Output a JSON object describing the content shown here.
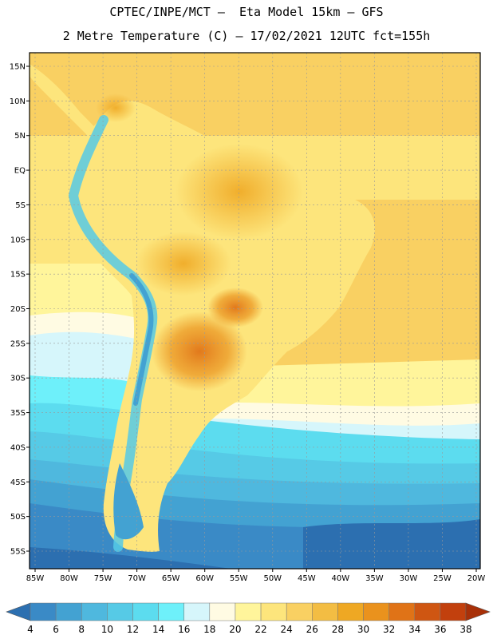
{
  "header": {
    "title_line1": "CPTEC/INPE/MCT –  Eta Model 15km – GFS",
    "title_line2": "2 Metre Temperature (C) – 17/02/2021 12UTC fct=155h"
  },
  "map": {
    "region": "South America",
    "lat_labels": [
      "15N",
      "10N",
      "5N",
      "EQ",
      "5S",
      "10S",
      "15S",
      "20S",
      "25S",
      "30S",
      "35S",
      "40S",
      "45S",
      "50S",
      "55S"
    ],
    "lon_labels": [
      "85W",
      "80W",
      "75W",
      "70W",
      "65W",
      "60W",
      "55W",
      "50W",
      "45W",
      "40W",
      "35W",
      "30W",
      "25W",
      "20W"
    ],
    "lat_range": [
      -58,
      16
    ],
    "lon_range": [
      -86,
      -20
    ]
  },
  "colorbar": {
    "values": [
      4,
      6,
      8,
      10,
      12,
      14,
      16,
      18,
      20,
      22,
      24,
      26,
      28,
      30,
      32,
      34,
      36,
      38
    ],
    "colors": [
      "#2c6fb0",
      "#3a8ac6",
      "#43a2d2",
      "#4fb8de",
      "#56cae6",
      "#5cdcef",
      "#6ef0fa",
      "#d6f6fb",
      "#fffbe3",
      "#fff59b",
      "#fde57c",
      "#f9d062",
      "#f3bd43",
      "#efa823",
      "#ea921d",
      "#e07317",
      "#cf5612",
      "#c2400d",
      "#a83008"
    ]
  }
}
